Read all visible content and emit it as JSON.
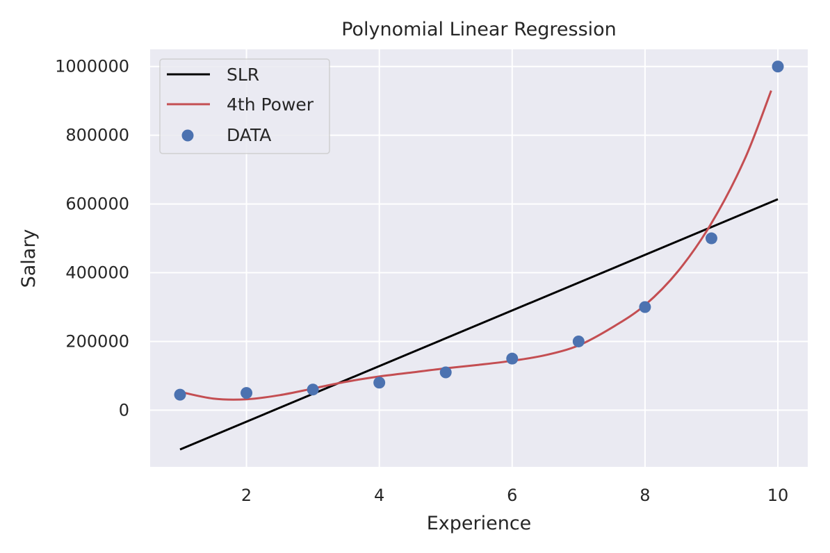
{
  "chart_data": {
    "type": "line",
    "title": "Polynomial Linear Regression",
    "xlabel": "Experience",
    "ylabel": "Salary",
    "xlim": [
      0.55,
      10.45
    ],
    "ylim": [
      -165000,
      1050000
    ],
    "x_ticks": [
      2,
      4,
      6,
      8,
      10
    ],
    "y_ticks": [
      0,
      200000,
      400000,
      600000,
      800000,
      1000000
    ],
    "grid": true,
    "legend_position": "top-left",
    "colors": {
      "background": "#EAEAF2",
      "grid": "#FFFFFF",
      "slr": "#000000",
      "poly": "#C44E52",
      "data": "#4C72B0"
    },
    "series": [
      {
        "name": "SLR",
        "kind": "line",
        "x": [
          1,
          10
        ],
        "y": [
          -114545,
          613636
        ]
      },
      {
        "name": "4th Power",
        "kind": "line",
        "x": [
          1.0,
          1.5,
          2.0,
          2.5,
          3.0,
          3.5,
          4.0,
          4.5,
          5.0,
          5.5,
          6.0,
          6.5,
          7.0,
          7.5,
          8.0,
          8.5,
          9.0,
          9.5,
          9.9
        ],
        "y": [
          53357,
          33700,
          31760,
          43600,
          62925,
          82700,
          97960,
          110000,
          121833,
          132000,
          143750,
          160000,
          188417,
          240000,
          305800,
          405000,
          544000,
          730000,
          930000
        ]
      },
      {
        "name": "DATA",
        "kind": "scatter",
        "x": [
          1,
          2,
          3,
          4,
          5,
          6,
          7,
          8,
          9,
          10
        ],
        "y": [
          45000,
          50000,
          60000,
          80000,
          110000,
          150000,
          200000,
          300000,
          500000,
          1000000
        ]
      }
    ]
  }
}
